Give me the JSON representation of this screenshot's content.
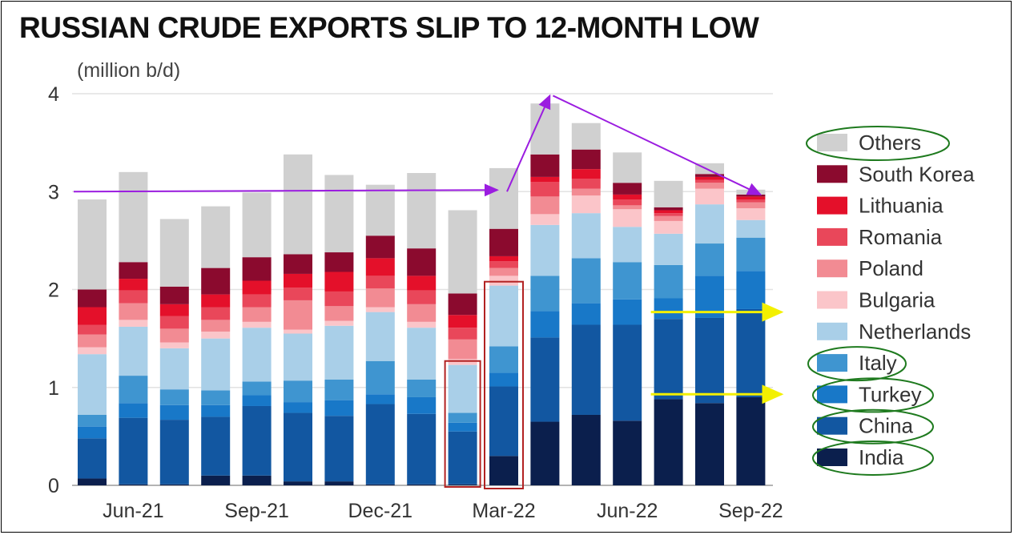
{
  "chart_data": {
    "type": "bar",
    "stacked": true,
    "title": "RUSSIAN CRUDE EXPORTS SLIP TO 12-MONTH LOW",
    "ylabel": "(million b/d)",
    "ylim": [
      0,
      4
    ],
    "yticks": [
      0,
      1,
      2,
      3,
      4
    ],
    "categories": [
      "May-21",
      "Jun-21",
      "Jul-21",
      "Aug-21",
      "Sep-21",
      "Oct-21",
      "Nov-21",
      "Dec-21",
      "Jan-22",
      "Feb-22",
      "Mar-22",
      "Apr-22",
      "May-22",
      "Jun-22",
      "Jul-22",
      "Aug-22",
      "Sep-22"
    ],
    "xtick_labels": [
      "Jun-21",
      "Sep-21",
      "Dec-21",
      "Mar-22",
      "Jun-22",
      "Sep-22"
    ],
    "series": [
      {
        "name": "India",
        "color": "#0b1f4d",
        "values": [
          0.07,
          0.01,
          0.01,
          0.1,
          0.1,
          0.04,
          0.04,
          0.01,
          0.01,
          0.01,
          0.3,
          0.65,
          0.72,
          0.66,
          0.88,
          0.84,
          0.9
        ]
      },
      {
        "name": "China",
        "color": "#1257a1",
        "values": [
          0.41,
          0.68,
          0.66,
          0.6,
          0.71,
          0.7,
          0.67,
          0.82,
          0.72,
          0.54,
          0.71,
          0.86,
          0.92,
          0.98,
          0.82,
          0.87,
          0.9
        ]
      },
      {
        "name": "Turkey",
        "color": "#1878c8",
        "values": [
          0.12,
          0.15,
          0.15,
          0.12,
          0.11,
          0.11,
          0.16,
          0.1,
          0.17,
          0.09,
          0.14,
          0.27,
          0.22,
          0.26,
          0.21,
          0.43,
          0.39
        ]
      },
      {
        "name": "Italy",
        "color": "#3f95d0",
        "values": [
          0.12,
          0.28,
          0.16,
          0.15,
          0.14,
          0.22,
          0.21,
          0.34,
          0.18,
          0.1,
          0.27,
          0.36,
          0.46,
          0.38,
          0.34,
          0.33,
          0.34
        ]
      },
      {
        "name": "Netherlands",
        "color": "#a9cfe8",
        "values": [
          0.62,
          0.5,
          0.42,
          0.53,
          0.55,
          0.48,
          0.55,
          0.5,
          0.53,
          0.49,
          0.62,
          0.52,
          0.46,
          0.36,
          0.32,
          0.4,
          0.18
        ]
      },
      {
        "name": "Bulgaria",
        "color": "#fbc5c9",
        "values": [
          0.07,
          0.07,
          0.06,
          0.07,
          0.06,
          0.04,
          0.05,
          0.05,
          0.06,
          0.06,
          0.1,
          0.11,
          0.18,
          0.18,
          0.13,
          0.16,
          0.12
        ]
      },
      {
        "name": "Poland",
        "color": "#f28b93",
        "values": [
          0.13,
          0.17,
          0.14,
          0.12,
          0.15,
          0.3,
          0.15,
          0.19,
          0.18,
          0.2,
          0.08,
          0.18,
          0.07,
          0.04,
          0.05,
          0.06,
          0.06
        ]
      },
      {
        "name": "Romania",
        "color": "#e9475a",
        "values": [
          0.1,
          0.13,
          0.13,
          0.13,
          0.13,
          0.13,
          0.15,
          0.13,
          0.14,
          0.12,
          0.07,
          0.15,
          0.1,
          0.06,
          0.03,
          0.03,
          0.03
        ]
      },
      {
        "name": "Lithuania",
        "color": "#e4102a",
        "values": [
          0.18,
          0.12,
          0.12,
          0.13,
          0.14,
          0.14,
          0.2,
          0.18,
          0.15,
          0.13,
          0.05,
          0.05,
          0.1,
          0.05,
          0.03,
          0.03,
          0.03
        ]
      },
      {
        "name": "South Korea",
        "color": "#8b0a2e",
        "values": [
          0.18,
          0.17,
          0.18,
          0.27,
          0.24,
          0.2,
          0.2,
          0.23,
          0.28,
          0.22,
          0.28,
          0.23,
          0.2,
          0.12,
          0.03,
          0.03,
          0.02
        ]
      },
      {
        "name": "Others",
        "color": "#d0d0d0",
        "values": [
          0.92,
          0.92,
          0.69,
          0.63,
          0.66,
          1.02,
          0.79,
          0.52,
          0.77,
          0.85,
          0.62,
          0.52,
          0.27,
          0.31,
          0.27,
          0.11,
          0.05
        ]
      }
    ],
    "legend_order": [
      "Others",
      "South Korea",
      "Lithuania",
      "Romania",
      "Poland",
      "Bulgaria",
      "Netherlands",
      "Italy",
      "Turkey",
      "China",
      "India"
    ],
    "legend_position": "right",
    "grid": true,
    "annotations": {
      "purple_arrows": [
        {
          "note": "horizontal arrow from the 3.0 level at the left edge to Mar-22"
        },
        {
          "note": "arrow from Mar-22 up to the Apr-22 peak"
        },
        {
          "note": "arrow from the Apr-22 peak down to Sep-22"
        }
      ],
      "yellow_arrows": [
        {
          "note": "arrow pointing right at about 1.8 from Jul-22 to Sep-22"
        },
        {
          "note": "arrow pointing right at about 0.95 from Jul-22 to Sep-22"
        }
      ],
      "red_boxes": [
        "Feb-22 lower bars",
        "Mar-22 lower bars"
      ],
      "green_circled_legend_items": [
        "Others",
        "Italy",
        "Turkey",
        "China",
        "India"
      ]
    }
  }
}
